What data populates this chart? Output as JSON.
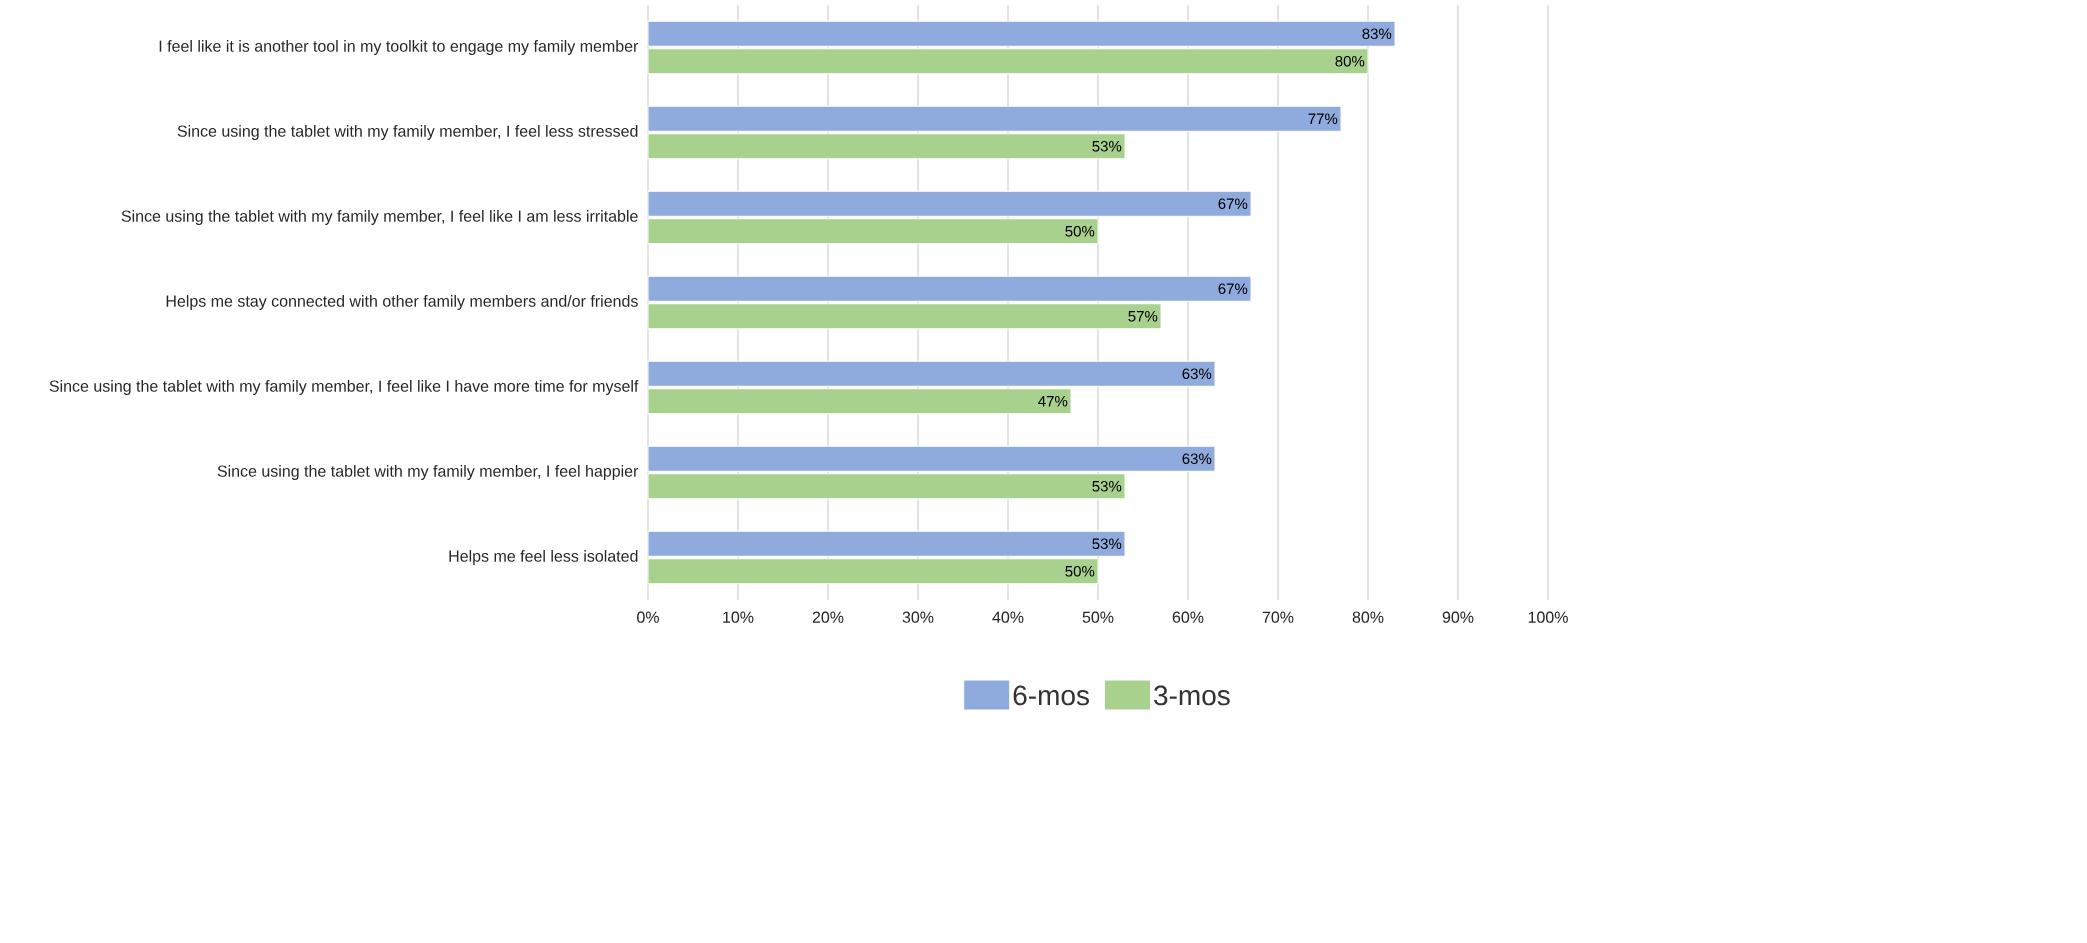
{
  "chart_data": {
    "type": "bar",
    "orientation": "horizontal",
    "categories": [
      "I feel like it is another tool in my toolkit to engage my family member",
      "Since using the tablet with my family member, I feel less stressed",
      "Since using the tablet with my family member, I feel like I am less irritable",
      "Helps me stay connected with other family members and/or friends",
      "Since using the tablet with my family member, I feel like I have more time for myself",
      "Since using the tablet with my family member, I feel happier",
      "Helps me feel less isolated"
    ],
    "series": [
      {
        "name": "6-mos",
        "color": "#8faadc",
        "values": [
          83,
          77,
          67,
          67,
          63,
          63,
          53
        ],
        "value_labels": [
          "83%",
          "77%",
          "67%",
          "67%",
          "63%",
          "63%",
          "53%"
        ]
      },
      {
        "name": "3-mos",
        "color": "#a9d18e",
        "values": [
          80,
          53,
          50,
          57,
          47,
          53,
          50
        ],
        "value_labels": [
          "80%",
          "53%",
          "50%",
          "57%",
          "47%",
          "53%",
          "50%"
        ]
      }
    ],
    "xlim": [
      0,
      100
    ],
    "xticks": [
      {
        "value": 0,
        "label": "0%"
      },
      {
        "value": 10,
        "label": "10%"
      },
      {
        "value": 20,
        "label": "20%"
      },
      {
        "value": 30,
        "label": "30%"
      },
      {
        "value": 40,
        "label": "40%"
      },
      {
        "value": 50,
        "label": "50%"
      },
      {
        "value": 60,
        "label": "60%"
      },
      {
        "value": 70,
        "label": "70%"
      },
      {
        "value": 80,
        "label": "80%"
      },
      {
        "value": 90,
        "label": "90%"
      },
      {
        "value": 100,
        "label": "100%"
      }
    ],
    "grid": "x",
    "legend": "bottom"
  }
}
